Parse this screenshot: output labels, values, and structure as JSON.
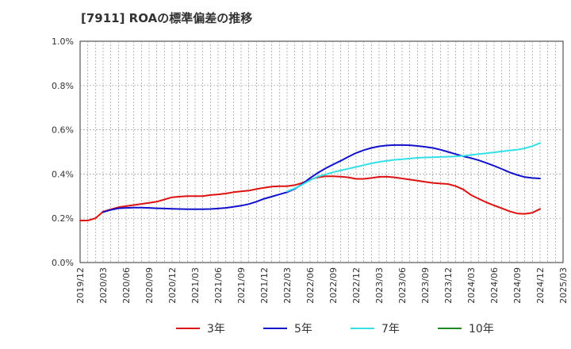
{
  "title": "[7911]  ROAの標準偏差の推移",
  "chart_data": {
    "type": "line",
    "title": "[7911]  ROAの標準偏差の推移",
    "xlabel": "",
    "ylabel": "",
    "x_ticks": [
      "2019/12",
      "2020/03",
      "2020/06",
      "2020/09",
      "2020/12",
      "2021/03",
      "2021/06",
      "2021/09",
      "2021/12",
      "2022/03",
      "2022/06",
      "2022/09",
      "2022/12",
      "2023/03",
      "2023/06",
      "2023/09",
      "2023/12",
      "2024/03",
      "2024/06",
      "2024/09",
      "2024/12",
      "2025/03"
    ],
    "y_ticks": [
      "0.0%",
      "0.2%",
      "0.4%",
      "0.6%",
      "0.8%",
      "1.0%"
    ],
    "ylim": [
      0.0,
      1.0
    ],
    "grid": true,
    "legend_position": "bottom",
    "series": [
      {
        "name": "3年",
        "color": "#dd1111",
        "points": [
          [
            "2019/12",
            0.19
          ],
          [
            "2020/01",
            0.19
          ],
          [
            "2020/02",
            0.2
          ],
          [
            "2020/03",
            0.23
          ],
          [
            "2020/04",
            0.24
          ],
          [
            "2020/05",
            0.25
          ],
          [
            "2020/06",
            0.255
          ],
          [
            "2020/07",
            0.26
          ],
          [
            "2020/08",
            0.265
          ],
          [
            "2020/09",
            0.27
          ],
          [
            "2020/10",
            0.275
          ],
          [
            "2020/11",
            0.285
          ],
          [
            "2020/12",
            0.295
          ],
          [
            "2021/01",
            0.298
          ],
          [
            "2021/02",
            0.3
          ],
          [
            "2021/03",
            0.3
          ],
          [
            "2021/04",
            0.3
          ],
          [
            "2021/05",
            0.305
          ],
          [
            "2021/06",
            0.308
          ],
          [
            "2021/07",
            0.312
          ],
          [
            "2021/08",
            0.318
          ],
          [
            "2021/09",
            0.322
          ],
          [
            "2021/10",
            0.325
          ],
          [
            "2021/11",
            0.332
          ],
          [
            "2021/12",
            0.338
          ],
          [
            "2022/01",
            0.343
          ],
          [
            "2022/02",
            0.345
          ],
          [
            "2022/03",
            0.345
          ],
          [
            "2022/04",
            0.35
          ],
          [
            "2022/05",
            0.36
          ],
          [
            "2022/06",
            0.375
          ],
          [
            "2022/07",
            0.385
          ],
          [
            "2022/08",
            0.39
          ],
          [
            "2022/09",
            0.39
          ],
          [
            "2022/10",
            0.388
          ],
          [
            "2022/11",
            0.385
          ],
          [
            "2022/12",
            0.378
          ],
          [
            "2023/01",
            0.378
          ],
          [
            "2023/02",
            0.382
          ],
          [
            "2023/03",
            0.387
          ],
          [
            "2023/04",
            0.388
          ],
          [
            "2023/05",
            0.385
          ],
          [
            "2023/06",
            0.38
          ],
          [
            "2023/07",
            0.375
          ],
          [
            "2023/08",
            0.37
          ],
          [
            "2023/09",
            0.365
          ],
          [
            "2023/10",
            0.36
          ],
          [
            "2023/11",
            0.357
          ],
          [
            "2023/12",
            0.355
          ],
          [
            "2024/01",
            0.345
          ],
          [
            "2024/02",
            0.33
          ],
          [
            "2024/03",
            0.305
          ],
          [
            "2024/04",
            0.288
          ],
          [
            "2024/05",
            0.272
          ],
          [
            "2024/06",
            0.258
          ],
          [
            "2024/07",
            0.245
          ],
          [
            "2024/08",
            0.232
          ],
          [
            "2024/09",
            0.222
          ],
          [
            "2024/10",
            0.22
          ],
          [
            "2024/11",
            0.225
          ],
          [
            "2024/12",
            0.242
          ]
        ]
      },
      {
        "name": "5年",
        "color": "#1111cc",
        "points": [
          [
            "2020/03",
            0.228
          ],
          [
            "2020/04",
            0.238
          ],
          [
            "2020/05",
            0.245
          ],
          [
            "2020/06",
            0.247
          ],
          [
            "2020/07",
            0.248
          ],
          [
            "2020/08",
            0.248
          ],
          [
            "2020/09",
            0.247
          ],
          [
            "2020/10",
            0.245
          ],
          [
            "2020/11",
            0.244
          ],
          [
            "2020/12",
            0.243
          ],
          [
            "2021/01",
            0.242
          ],
          [
            "2021/02",
            0.241
          ],
          [
            "2021/03",
            0.241
          ],
          [
            "2021/04",
            0.241
          ],
          [
            "2021/05",
            0.242
          ],
          [
            "2021/06",
            0.244
          ],
          [
            "2021/07",
            0.247
          ],
          [
            "2021/08",
            0.252
          ],
          [
            "2021/09",
            0.257
          ],
          [
            "2021/10",
            0.264
          ],
          [
            "2021/11",
            0.275
          ],
          [
            "2021/12",
            0.288
          ],
          [
            "2022/01",
            0.298
          ],
          [
            "2022/02",
            0.308
          ],
          [
            "2022/03",
            0.318
          ],
          [
            "2022/04",
            0.333
          ],
          [
            "2022/05",
            0.355
          ],
          [
            "2022/06",
            0.382
          ],
          [
            "2022/07",
            0.405
          ],
          [
            "2022/08",
            0.425
          ],
          [
            "2022/09",
            0.443
          ],
          [
            "2022/10",
            0.46
          ],
          [
            "2022/11",
            0.478
          ],
          [
            "2022/12",
            0.495
          ],
          [
            "2023/01",
            0.508
          ],
          [
            "2023/02",
            0.518
          ],
          [
            "2023/03",
            0.525
          ],
          [
            "2023/04",
            0.529
          ],
          [
            "2023/05",
            0.531
          ],
          [
            "2023/06",
            0.531
          ],
          [
            "2023/07",
            0.53
          ],
          [
            "2023/08",
            0.527
          ],
          [
            "2023/09",
            0.523
          ],
          [
            "2023/10",
            0.518
          ],
          [
            "2023/11",
            0.51
          ],
          [
            "2023/12",
            0.5
          ],
          [
            "2024/01",
            0.49
          ],
          [
            "2024/02",
            0.48
          ],
          [
            "2024/03",
            0.472
          ],
          [
            "2024/04",
            0.462
          ],
          [
            "2024/05",
            0.45
          ],
          [
            "2024/06",
            0.437
          ],
          [
            "2024/07",
            0.423
          ],
          [
            "2024/08",
            0.408
          ],
          [
            "2024/09",
            0.396
          ],
          [
            "2024/10",
            0.386
          ],
          [
            "2024/11",
            0.382
          ],
          [
            "2024/12",
            0.38
          ]
        ]
      },
      {
        "name": "7年",
        "color": "#33e0e8",
        "points": [
          [
            "2022/03",
            0.322
          ],
          [
            "2022/04",
            0.335
          ],
          [
            "2022/05",
            0.352
          ],
          [
            "2022/06",
            0.372
          ],
          [
            "2022/07",
            0.388
          ],
          [
            "2022/08",
            0.398
          ],
          [
            "2022/09",
            0.408
          ],
          [
            "2022/10",
            0.416
          ],
          [
            "2022/11",
            0.424
          ],
          [
            "2022/12",
            0.432
          ],
          [
            "2023/01",
            0.44
          ],
          [
            "2023/02",
            0.448
          ],
          [
            "2023/03",
            0.455
          ],
          [
            "2023/04",
            0.46
          ],
          [
            "2023/05",
            0.464
          ],
          [
            "2023/06",
            0.467
          ],
          [
            "2023/07",
            0.47
          ],
          [
            "2023/08",
            0.473
          ],
          [
            "2023/09",
            0.475
          ],
          [
            "2023/10",
            0.476
          ],
          [
            "2023/11",
            0.477
          ],
          [
            "2023/12",
            0.478
          ],
          [
            "2024/01",
            0.48
          ],
          [
            "2024/02",
            0.482
          ],
          [
            "2024/03",
            0.486
          ],
          [
            "2024/04",
            0.49
          ],
          [
            "2024/05",
            0.494
          ],
          [
            "2024/06",
            0.498
          ],
          [
            "2024/07",
            0.502
          ],
          [
            "2024/08",
            0.506
          ],
          [
            "2024/09",
            0.51
          ],
          [
            "2024/10",
            0.516
          ],
          [
            "2024/11",
            0.526
          ],
          [
            "2024/12",
            0.54
          ]
        ]
      },
      {
        "name": "10年",
        "color": "#228822",
        "points": []
      }
    ]
  }
}
